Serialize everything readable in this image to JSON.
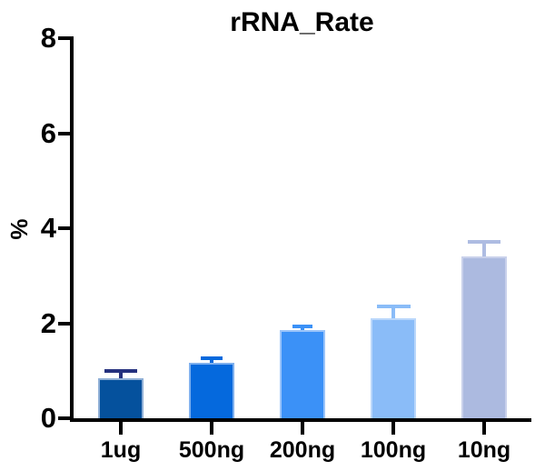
{
  "chart_data": {
    "type": "bar",
    "title": "rRNA_Rate",
    "xlabel": "",
    "ylabel": "%",
    "categories": [
      "1ug",
      "500ng",
      "200ng",
      "100ng",
      "10ng"
    ],
    "values": [
      0.85,
      1.17,
      1.85,
      2.1,
      3.4
    ],
    "errors": [
      0.1,
      0.06,
      0.05,
      0.21,
      0.27
    ],
    "error_style": "sd-up-with-cap",
    "ylim": [
      0,
      8
    ],
    "yticks": [
      0,
      2,
      4,
      6,
      8
    ],
    "grid": false,
    "legend": null,
    "axis_color": "#000000",
    "text_color": "#000000",
    "bar_colors": [
      "#05519D",
      "#0569DD",
      "#3B91F7",
      "#8ABCF8",
      "#ACBAE0"
    ],
    "bar_border_colors": [
      "#8FAFD6",
      "#7FB0EE",
      "#9AC4FA",
      "#BAD7FB",
      "#C9D1EB"
    ],
    "error_colors": [
      "#25317E",
      "#0569DD",
      "#3B91F7",
      "#8ABCF8",
      "#AEBCE2"
    ]
  }
}
